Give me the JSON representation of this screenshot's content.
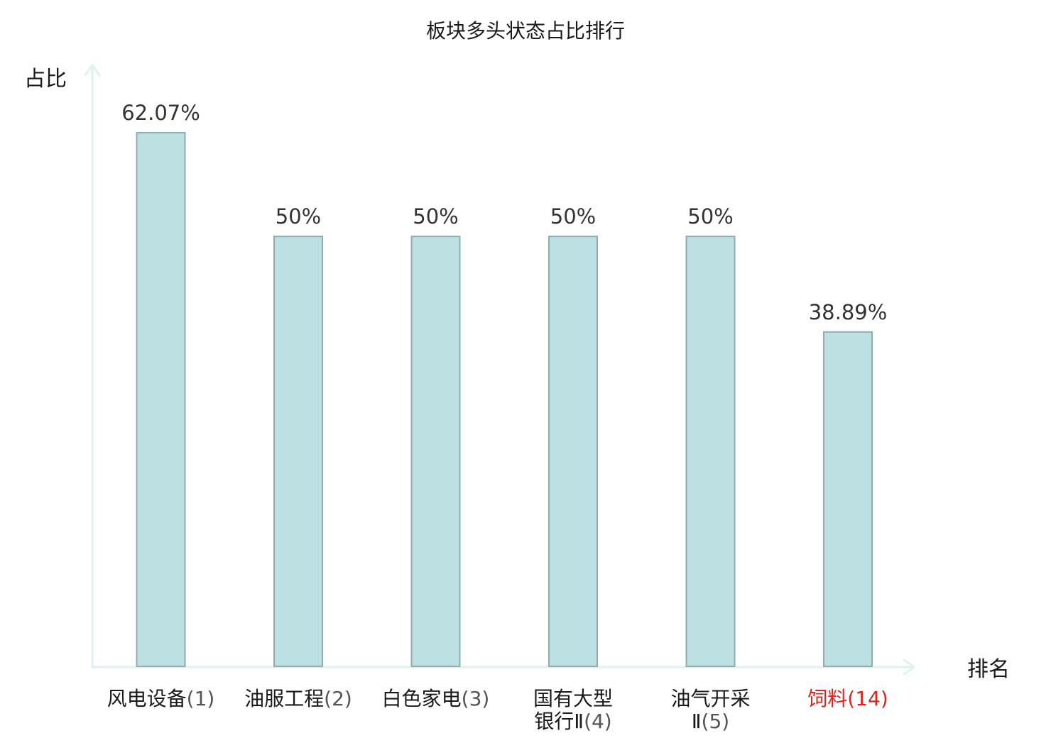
{
  "chart_data": {
    "type": "bar",
    "title": "板块多头状态占比排行",
    "ylabel": "占比",
    "xlabel": "排名",
    "ylim": [
      0,
      62.07
    ],
    "grid": false,
    "categories": [
      {
        "lines": [
          {
            "name": "风电设备",
            "num": "(1)"
          }
        ],
        "highlight": false
      },
      {
        "lines": [
          {
            "name": "油服工程",
            "num": "(2)"
          }
        ],
        "highlight": false
      },
      {
        "lines": [
          {
            "name": "白色家电",
            "num": "(3)"
          }
        ],
        "highlight": false
      },
      {
        "lines": [
          {
            "name": "国有大型",
            "num": ""
          },
          {
            "name": "银行Ⅱ",
            "num": "(4)"
          }
        ],
        "highlight": false
      },
      {
        "lines": [
          {
            "name": "油气开采",
            "num": ""
          },
          {
            "name": "Ⅱ",
            "num": "(5)"
          }
        ],
        "highlight": false
      },
      {
        "lines": [
          {
            "name": "饲料",
            "num": "(14)"
          }
        ],
        "highlight": true
      }
    ],
    "values": [
      62.07,
      50,
      50,
      50,
      50,
      38.89
    ],
    "value_labels": [
      "62.07%",
      "50%",
      "50%",
      "50%",
      "50%",
      "38.89%"
    ],
    "colors": {
      "bar_fill": "#bde1e3",
      "bar_stroke": "#8fadb0",
      "axis": "#dff2ef",
      "highlight_text": "#e0241b"
    }
  }
}
